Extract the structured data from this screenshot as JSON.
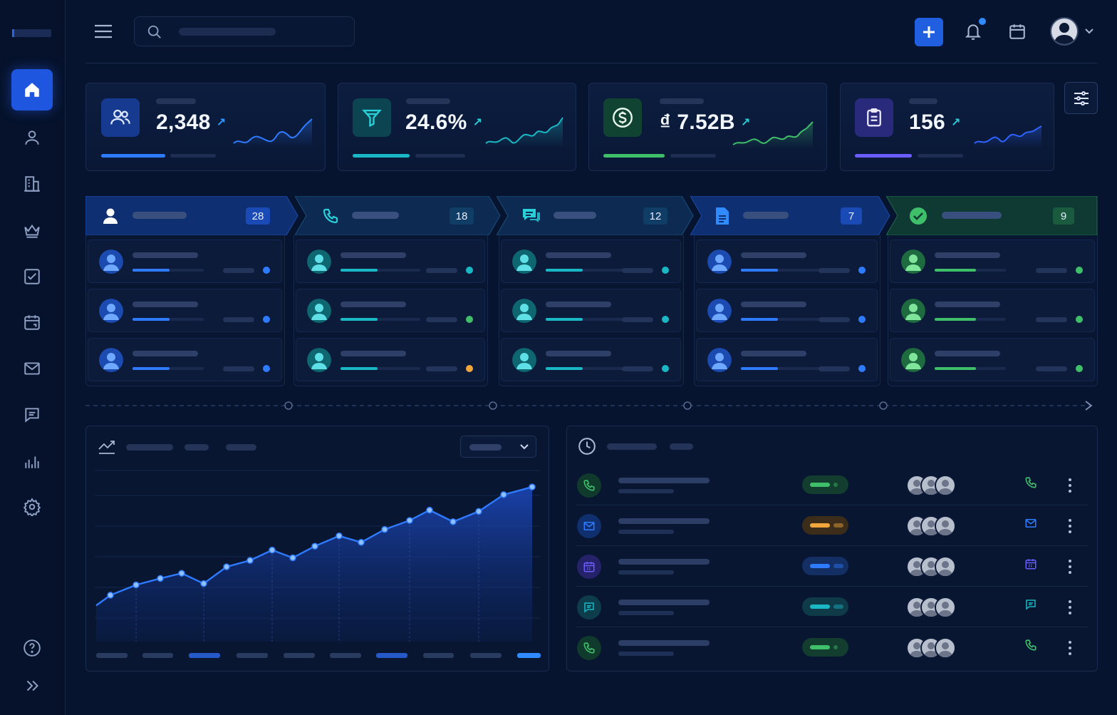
{
  "colors": {
    "background": "#071430",
    "accent": "#1f5fe0",
    "blue": "#2f7bff",
    "teal": "#19b8c4",
    "green": "#3fbf6a",
    "purple": "#6a5cff",
    "orange": "#f0a63a"
  },
  "sidebar": {
    "items": [
      {
        "icon": "home-icon",
        "active": true
      },
      {
        "icon": "user-icon"
      },
      {
        "icon": "building-icon"
      },
      {
        "icon": "crown-icon"
      },
      {
        "icon": "checkbox-icon"
      },
      {
        "icon": "calendar-icon"
      },
      {
        "icon": "mail-icon"
      },
      {
        "icon": "chat-icon"
      },
      {
        "icon": "bar-chart-icon"
      },
      {
        "icon": "gear-icon"
      }
    ],
    "bottom": [
      {
        "icon": "help-icon"
      },
      {
        "icon": "expand-icon"
      }
    ]
  },
  "kpis": [
    {
      "icon": "users-icon",
      "value": "2,348",
      "trend": "↗",
      "color": "#2f7bff"
    },
    {
      "icon": "funnel-icon",
      "value": "24.6%",
      "trend": "↗",
      "color": "#19b8c4"
    },
    {
      "icon": "dollar-icon",
      "value": "₫ 7.52B",
      "trend": "↗",
      "color": "#3fbf6a"
    },
    {
      "icon": "clipboard-icon",
      "value": "156",
      "trend": "↗",
      "color": "#6a5cff"
    }
  ],
  "pipeline": {
    "stages": [
      {
        "icon": "user-icon",
        "count": "28",
        "color": "#2f7bff",
        "dots": [
          "#2f7bff",
          "#2f7bff",
          "#2f7bff"
        ]
      },
      {
        "icon": "phone-icon",
        "count": "18",
        "color": "#19b8c4",
        "dots": [
          "#19b8c4",
          "#3fbf6a",
          "#f0a63a"
        ]
      },
      {
        "icon": "chat-icon",
        "count": "12",
        "color": "#19b8c4",
        "dots": [
          "#19b8c4",
          "#19b8c4",
          "#19b8c4"
        ]
      },
      {
        "icon": "document-icon",
        "count": "7",
        "color": "#2f7bff",
        "dots": [
          "#2f7bff",
          "#2f7bff",
          "#2f7bff"
        ]
      },
      {
        "icon": "check-circle-icon",
        "count": "9",
        "color": "#3fbf6a",
        "dots": [
          "#3fbf6a",
          "#3fbf6a",
          "#3fbf6a"
        ]
      }
    ]
  },
  "chart_data": {
    "type": "area",
    "title": "",
    "xlabel": "",
    "ylabel": "",
    "grid": true,
    "series": [
      {
        "values": [
          8,
          16,
          24,
          29,
          33,
          25,
          38,
          43,
          51,
          45,
          54,
          62,
          57,
          67,
          74,
          82,
          73,
          81,
          94,
          100
        ]
      }
    ],
    "ylim": [
      -20,
      110
    ]
  },
  "activities": [
    {
      "icon": "phone-icon",
      "color": "#3fbf6a",
      "status_color": "#3fbf6a",
      "action": "phone-icon"
    },
    {
      "icon": "mail-icon",
      "color": "#2f7bff",
      "status_color": "#f0a63a",
      "action": "mail-icon"
    },
    {
      "icon": "calendar-icon",
      "color": "#6a5cff",
      "status_color": "#2f7bff",
      "action": "calendar-icon"
    },
    {
      "icon": "chat-icon",
      "color": "#19b8c4",
      "status_color": "#19b8c4",
      "action": "chat-icon"
    },
    {
      "icon": "phone-icon",
      "color": "#3fbf6a",
      "status_color": "#3fbf6a",
      "action": "phone-icon"
    }
  ]
}
